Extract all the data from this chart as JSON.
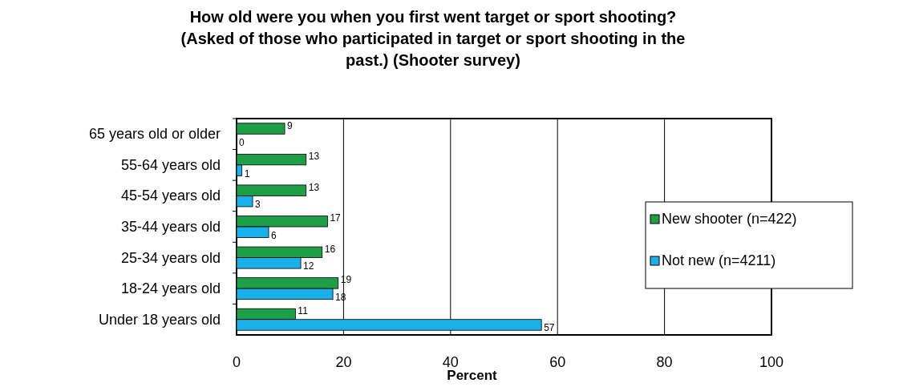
{
  "chart_data": {
    "type": "bar",
    "orientation": "horizontal",
    "title": "How old were you when you first went target or sport shooting?\n(Asked of those who participated in target or sport shooting in the\npast.) (Shooter survey)",
    "xlabel": "Percent",
    "categories": [
      "65 years old or older",
      "55-64 years old",
      "45-54 years old",
      "35-44 years old",
      "25-34 years old",
      "18-24 years old",
      "Under 18 years old"
    ],
    "series": [
      {
        "name": "New shooter (n=422)",
        "color": "#1f9e48",
        "values": [
          9,
          13,
          13,
          17,
          16,
          19,
          11
        ]
      },
      {
        "name": "Not new (n=4211)",
        "color": "#1ab0ea",
        "values": [
          0,
          1,
          3,
          6,
          12,
          18,
          57
        ]
      }
    ],
    "xlim": [
      0,
      100
    ],
    "xticks": [
      0,
      20,
      40,
      60,
      80,
      100
    ],
    "grid": "x",
    "legend": "right",
    "data_labels": true
  }
}
